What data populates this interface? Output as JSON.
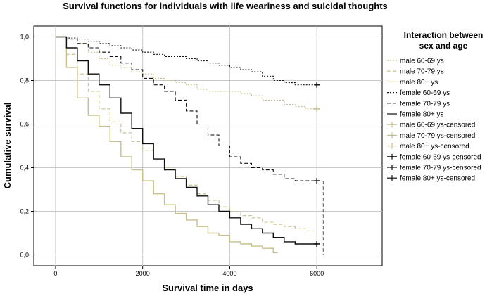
{
  "chart_data": {
    "type": "line",
    "subtype": "kaplan-meier",
    "title": "Survival functions for individuals with life weariness and suicidal thoughts",
    "xlabel": "Survival time in days",
    "ylabel": "Cumulative survival",
    "xlim": [
      -500,
      7500
    ],
    "ylim": [
      -0.05,
      1.05
    ],
    "xticks": [
      0,
      2000,
      4000,
      6000
    ],
    "xtick_labels": [
      "0",
      "2000",
      "4000",
      "6000"
    ],
    "yticks": [
      0.0,
      0.2,
      0.4,
      0.6,
      0.8,
      1.0
    ],
    "ytick_labels": [
      "0,0",
      "0,2",
      "0,4",
      "0,6",
      "0,8",
      "1,0"
    ],
    "grid": true,
    "legend_position": "right",
    "legend": {
      "title": "Interaction between sex and age",
      "title_lines": [
        "Interaction between",
        "sex and age"
      ],
      "entries": [
        {
          "label": "male 60-69 ys",
          "color": "#c8c08a",
          "style": "dotted",
          "kind": "line"
        },
        {
          "label": "male 70-79 ys",
          "color": "#c8c08a",
          "style": "dashed",
          "kind": "line"
        },
        {
          "label": "male 80+ ys",
          "color": "#c8c08a",
          "style": "solid",
          "kind": "line"
        },
        {
          "label": "female 60-69 ys",
          "color": "#111111",
          "style": "dotted",
          "kind": "line"
        },
        {
          "label": "female 70-79 ys",
          "color": "#111111",
          "style": "dashed",
          "kind": "line"
        },
        {
          "label": "female 80+ ys",
          "color": "#111111",
          "style": "solid",
          "kind": "line"
        },
        {
          "label": "male 60-69 ys-censored",
          "color": "#c8c08a",
          "kind": "censor"
        },
        {
          "label": "male 70-79 ys-censored",
          "color": "#c8c08a",
          "kind": "censor"
        },
        {
          "label": "male 80+ ys-censored",
          "color": "#c8c08a",
          "kind": "censor"
        },
        {
          "label": "female 60-69 ys-censored",
          "color": "#111111",
          "kind": "censor"
        },
        {
          "label": "female 70-79 ys-censored",
          "color": "#111111",
          "kind": "censor"
        },
        {
          "label": "female 80+ ys-censored",
          "color": "#111111",
          "kind": "censor"
        }
      ]
    },
    "series": [
      {
        "name": "male 60-69 ys",
        "color": "#c8c08a",
        "style": "dotted",
        "x": [
          0,
          250,
          500,
          750,
          1000,
          1250,
          1500,
          1750,
          2000,
          2250,
          2500,
          2750,
          3000,
          3250,
          3500,
          3750,
          4000,
          4250,
          4500,
          4750,
          5000,
          5250,
          5500,
          5750,
          6000
        ],
        "y": [
          1.0,
          0.99,
          0.97,
          0.93,
          0.9,
          0.87,
          0.86,
          0.84,
          0.83,
          0.81,
          0.8,
          0.79,
          0.78,
          0.76,
          0.75,
          0.75,
          0.75,
          0.74,
          0.73,
          0.71,
          0.71,
          0.69,
          0.68,
          0.67,
          0.67
        ]
      },
      {
        "name": "male 70-79 ys",
        "color": "#c8c08a",
        "style": "dashed",
        "x": [
          0,
          250,
          500,
          750,
          1000,
          1250,
          1500,
          1750,
          2000,
          2250,
          2500,
          2750,
          3000,
          3250,
          3500,
          3750,
          4000,
          4250,
          4500,
          4750,
          5000,
          5250,
          5500,
          5750,
          6000
        ],
        "y": [
          1.0,
          0.92,
          0.83,
          0.75,
          0.67,
          0.61,
          0.56,
          0.52,
          0.48,
          0.44,
          0.4,
          0.36,
          0.32,
          0.28,
          0.25,
          0.22,
          0.2,
          0.18,
          0.17,
          0.15,
          0.14,
          0.13,
          0.12,
          0.11,
          0.11
        ]
      },
      {
        "name": "male 80+ ys",
        "color": "#c8c08a",
        "style": "solid",
        "x": [
          0,
          250,
          500,
          750,
          1000,
          1250,
          1500,
          1750,
          2000,
          2250,
          2500,
          2750,
          3000,
          3250,
          3500,
          3750,
          4000,
          4250,
          4500,
          4750,
          5000,
          5100
        ],
        "y": [
          1.0,
          0.86,
          0.72,
          0.64,
          0.59,
          0.52,
          0.45,
          0.39,
          0.34,
          0.28,
          0.23,
          0.19,
          0.16,
          0.13,
          0.1,
          0.09,
          0.06,
          0.05,
          0.04,
          0.03,
          0.01,
          0.01
        ]
      },
      {
        "name": "female 60-69 ys",
        "color": "#111111",
        "style": "dotted",
        "x": [
          0,
          250,
          500,
          750,
          1000,
          1250,
          1500,
          1750,
          2000,
          2250,
          2500,
          2750,
          3000,
          3250,
          3500,
          3750,
          4000,
          4250,
          4500,
          4750,
          5000,
          5250,
          5500,
          5750,
          6000
        ],
        "y": [
          1.0,
          0.995,
          0.99,
          0.98,
          0.97,
          0.96,
          0.95,
          0.94,
          0.93,
          0.92,
          0.91,
          0.91,
          0.9,
          0.89,
          0.88,
          0.87,
          0.86,
          0.85,
          0.84,
          0.82,
          0.8,
          0.79,
          0.78,
          0.78,
          0.78
        ]
      },
      {
        "name": "female 70-79 ys",
        "color": "#111111",
        "style": "dashed",
        "x": [
          0,
          250,
          500,
          750,
          1000,
          1250,
          1500,
          1750,
          2000,
          2250,
          2500,
          2750,
          3000,
          3250,
          3500,
          3750,
          4000,
          4250,
          4500,
          4750,
          5000,
          5250,
          5500,
          5750,
          6000
        ],
        "y": [
          1.0,
          0.99,
          0.97,
          0.95,
          0.93,
          0.91,
          0.88,
          0.85,
          0.81,
          0.78,
          0.75,
          0.71,
          0.66,
          0.6,
          0.55,
          0.5,
          0.45,
          0.42,
          0.4,
          0.39,
          0.37,
          0.35,
          0.34,
          0.34,
          0.34
        ]
      },
      {
        "name": "female 80+ ys",
        "color": "#111111",
        "style": "solid",
        "x": [
          0,
          250,
          500,
          750,
          1000,
          1250,
          1500,
          1750,
          2000,
          2250,
          2500,
          2750,
          3000,
          3250,
          3500,
          3750,
          4000,
          4250,
          4500,
          4750,
          5000,
          5250,
          5500,
          5750,
          6000
        ],
        "y": [
          1.0,
          0.95,
          0.89,
          0.83,
          0.78,
          0.72,
          0.65,
          0.58,
          0.51,
          0.44,
          0.39,
          0.35,
          0.31,
          0.27,
          0.23,
          0.2,
          0.17,
          0.14,
          0.12,
          0.1,
          0.08,
          0.06,
          0.05,
          0.05,
          0.05
        ]
      }
    ],
    "censored_points": [
      {
        "name": "female 60-69 ys-censored",
        "x": 6000,
        "y": 0.78,
        "color": "#111111"
      },
      {
        "name": "female 70-79 ys-censored",
        "x": 6000,
        "y": 0.34,
        "color": "#111111"
      },
      {
        "name": "female 80+ ys-censored",
        "x": 6000,
        "y": 0.05,
        "color": "#111111"
      },
      {
        "name": "male 60-69 ys-censored",
        "x": 6000,
        "y": 0.67,
        "color": "#c8c08a"
      }
    ],
    "drop_line": {
      "series": "female 70-79 ys",
      "x": 6150,
      "from": 0.34,
      "to": 0.0,
      "color": "#777777"
    }
  }
}
